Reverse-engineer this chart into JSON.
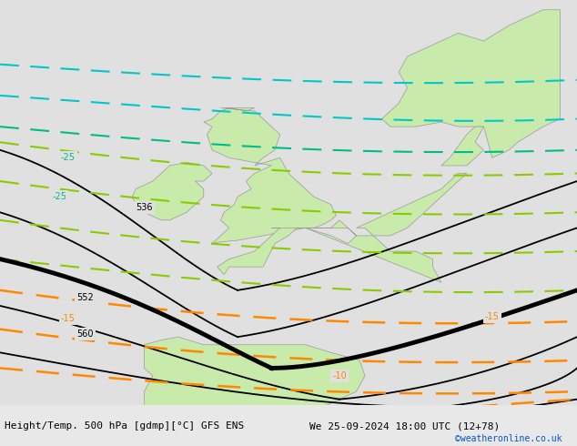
{
  "title_left": "Height/Temp. 500 hPa [gdmp][°C] GFS ENS",
  "title_right": "We 25-09-2024 18:00 UTC (12+78)",
  "credit": "©weatheronline.co.uk",
  "background_color": "#e0e0e0",
  "land_color": "#c8eaaa",
  "coast_color": "#999999",
  "figsize": [
    6.34,
    4.9
  ],
  "dpi": 100,
  "xlim": [
    0,
    634
  ],
  "ylim": [
    0,
    445
  ]
}
